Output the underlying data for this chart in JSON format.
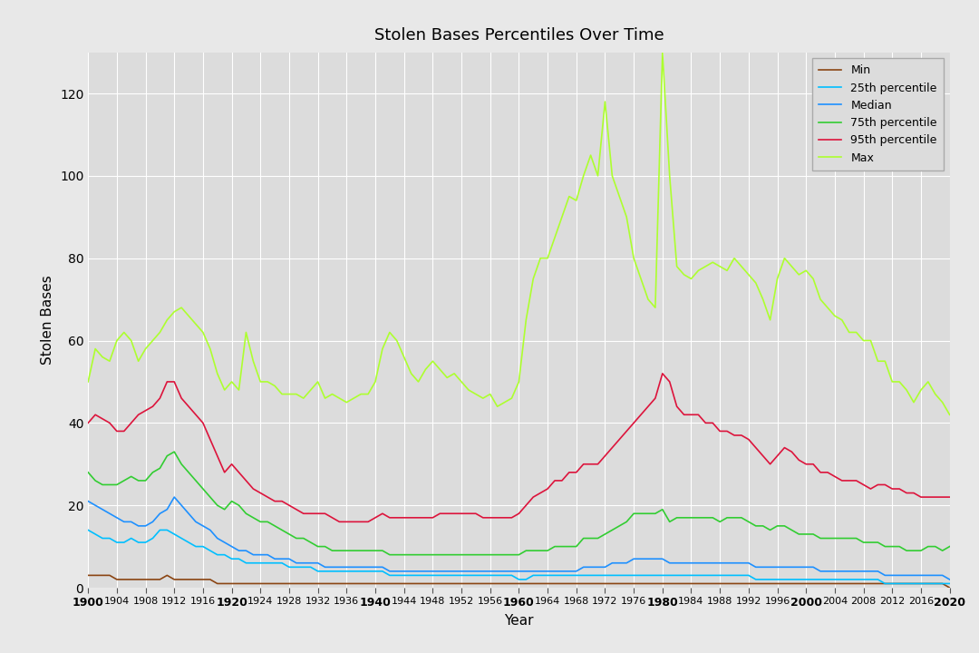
{
  "title": "Stolen Bases Percentiles Over Time",
  "xlabel": "Year",
  "ylabel": "Stolen Bases",
  "fig_background_color": "#e8e8e8",
  "axes_background_color": "#dcdcdc",
  "years": [
    1900,
    1901,
    1902,
    1903,
    1904,
    1905,
    1906,
    1907,
    1908,
    1909,
    1910,
    1911,
    1912,
    1913,
    1914,
    1915,
    1916,
    1917,
    1918,
    1919,
    1920,
    1921,
    1922,
    1923,
    1924,
    1925,
    1926,
    1927,
    1928,
    1929,
    1930,
    1931,
    1932,
    1933,
    1934,
    1935,
    1936,
    1937,
    1938,
    1939,
    1940,
    1941,
    1942,
    1943,
    1944,
    1945,
    1946,
    1947,
    1948,
    1949,
    1950,
    1951,
    1952,
    1953,
    1954,
    1955,
    1956,
    1957,
    1958,
    1959,
    1960,
    1961,
    1962,
    1963,
    1964,
    1965,
    1966,
    1967,
    1968,
    1969,
    1970,
    1971,
    1972,
    1973,
    1974,
    1975,
    1976,
    1977,
    1978,
    1979,
    1980,
    1981,
    1982,
    1983,
    1984,
    1985,
    1986,
    1987,
    1988,
    1989,
    1990,
    1991,
    1992,
    1993,
    1994,
    1995,
    1996,
    1997,
    1998,
    1999,
    2000,
    2001,
    2002,
    2003,
    2004,
    2005,
    2006,
    2007,
    2008,
    2009,
    2010,
    2011,
    2012,
    2013,
    2014,
    2015,
    2016,
    2017,
    2018,
    2019,
    2020
  ],
  "min": [
    3,
    3,
    3,
    3,
    2,
    2,
    2,
    2,
    2,
    2,
    2,
    3,
    2,
    2,
    2,
    2,
    2,
    2,
    1,
    1,
    1,
    1,
    1,
    1,
    1,
    1,
    1,
    1,
    1,
    1,
    1,
    1,
    1,
    1,
    1,
    1,
    1,
    1,
    1,
    1,
    1,
    1,
    1,
    1,
    1,
    1,
    1,
    1,
    1,
    1,
    1,
    1,
    1,
    1,
    1,
    1,
    1,
    1,
    1,
    1,
    1,
    1,
    1,
    1,
    1,
    1,
    1,
    1,
    1,
    1,
    1,
    1,
    1,
    1,
    1,
    1,
    1,
    1,
    1,
    1,
    1,
    1,
    1,
    1,
    1,
    1,
    1,
    1,
    1,
    1,
    1,
    1,
    1,
    1,
    1,
    1,
    1,
    1,
    1,
    1,
    1,
    1,
    1,
    1,
    1,
    1,
    1,
    1,
    1,
    1,
    1,
    1,
    1,
    1,
    1,
    1,
    1,
    1,
    1,
    1,
    0
  ],
  "p25": [
    14,
    13,
    12,
    12,
    11,
    11,
    12,
    11,
    11,
    12,
    14,
    14,
    13,
    12,
    11,
    10,
    10,
    9,
    8,
    8,
    7,
    7,
    6,
    6,
    6,
    6,
    6,
    6,
    5,
    5,
    5,
    5,
    4,
    4,
    4,
    4,
    4,
    4,
    4,
    4,
    4,
    4,
    3,
    3,
    3,
    3,
    3,
    3,
    3,
    3,
    3,
    3,
    3,
    3,
    3,
    3,
    3,
    3,
    3,
    3,
    2,
    2,
    3,
    3,
    3,
    3,
    3,
    3,
    3,
    3,
    3,
    3,
    3,
    3,
    3,
    3,
    3,
    3,
    3,
    3,
    3,
    3,
    3,
    3,
    3,
    3,
    3,
    3,
    3,
    3,
    3,
    3,
    3,
    2,
    2,
    2,
    2,
    2,
    2,
    2,
    2,
    2,
    2,
    2,
    2,
    2,
    2,
    2,
    2,
    2,
    2,
    1,
    1,
    1,
    1,
    1,
    1,
    1,
    1,
    1,
    1
  ],
  "median": [
    21,
    20,
    19,
    18,
    17,
    16,
    16,
    15,
    15,
    16,
    18,
    19,
    22,
    20,
    18,
    16,
    15,
    14,
    12,
    11,
    10,
    9,
    9,
    8,
    8,
    8,
    7,
    7,
    7,
    6,
    6,
    6,
    6,
    5,
    5,
    5,
    5,
    5,
    5,
    5,
    5,
    5,
    4,
    4,
    4,
    4,
    4,
    4,
    4,
    4,
    4,
    4,
    4,
    4,
    4,
    4,
    4,
    4,
    4,
    4,
    4,
    4,
    4,
    4,
    4,
    4,
    4,
    4,
    4,
    5,
    5,
    5,
    5,
    6,
    6,
    6,
    7,
    7,
    7,
    7,
    7,
    6,
    6,
    6,
    6,
    6,
    6,
    6,
    6,
    6,
    6,
    6,
    6,
    5,
    5,
    5,
    5,
    5,
    5,
    5,
    5,
    5,
    4,
    4,
    4,
    4,
    4,
    4,
    4,
    4,
    4,
    3,
    3,
    3,
    3,
    3,
    3,
    3,
    3,
    3,
    2
  ],
  "p75": [
    28,
    26,
    25,
    25,
    25,
    26,
    27,
    26,
    26,
    28,
    29,
    32,
    33,
    30,
    28,
    26,
    24,
    22,
    20,
    19,
    21,
    20,
    18,
    17,
    16,
    16,
    15,
    14,
    13,
    12,
    12,
    11,
    10,
    10,
    9,
    9,
    9,
    9,
    9,
    9,
    9,
    9,
    8,
    8,
    8,
    8,
    8,
    8,
    8,
    8,
    8,
    8,
    8,
    8,
    8,
    8,
    8,
    8,
    8,
    8,
    8,
    9,
    9,
    9,
    9,
    10,
    10,
    10,
    10,
    12,
    12,
    12,
    13,
    14,
    15,
    16,
    18,
    18,
    18,
    18,
    19,
    16,
    17,
    17,
    17,
    17,
    17,
    17,
    16,
    17,
    17,
    17,
    16,
    15,
    15,
    14,
    15,
    15,
    14,
    13,
    13,
    13,
    12,
    12,
    12,
    12,
    12,
    12,
    11,
    11,
    11,
    10,
    10,
    10,
    9,
    9,
    9,
    10,
    10,
    9,
    10
  ],
  "p95": [
    40,
    42,
    41,
    40,
    38,
    38,
    40,
    42,
    43,
    44,
    46,
    50,
    50,
    46,
    44,
    42,
    40,
    36,
    32,
    28,
    30,
    28,
    26,
    24,
    23,
    22,
    21,
    21,
    20,
    19,
    18,
    18,
    18,
    18,
    17,
    16,
    16,
    16,
    16,
    16,
    17,
    18,
    17,
    17,
    17,
    17,
    17,
    17,
    17,
    18,
    18,
    18,
    18,
    18,
    18,
    17,
    17,
    17,
    17,
    17,
    18,
    20,
    22,
    23,
    24,
    26,
    26,
    28,
    28,
    30,
    30,
    30,
    32,
    34,
    36,
    38,
    40,
    42,
    44,
    46,
    52,
    50,
    44,
    42,
    42,
    42,
    40,
    40,
    38,
    38,
    37,
    37,
    36,
    34,
    32,
    30,
    32,
    34,
    33,
    31,
    30,
    30,
    28,
    28,
    27,
    26,
    26,
    26,
    25,
    24,
    25,
    25,
    24,
    24,
    23,
    23,
    22,
    22,
    22,
    22,
    22
  ],
  "max": [
    50,
    58,
    56,
    55,
    60,
    62,
    60,
    55,
    58,
    60,
    62,
    65,
    67,
    68,
    66,
    64,
    62,
    58,
    52,
    48,
    50,
    48,
    62,
    55,
    50,
    50,
    49,
    47,
    47,
    47,
    46,
    48,
    50,
    46,
    47,
    46,
    45,
    46,
    47,
    47,
    50,
    58,
    62,
    60,
    56,
    52,
    50,
    53,
    55,
    53,
    51,
    52,
    50,
    48,
    47,
    46,
    47,
    44,
    45,
    46,
    50,
    65,
    75,
    80,
    80,
    85,
    90,
    95,
    94,
    100,
    105,
    100,
    118,
    100,
    95,
    90,
    80,
    75,
    70,
    68,
    130,
    100,
    78,
    76,
    75,
    77,
    78,
    79,
    78,
    77,
    80,
    78,
    76,
    74,
    70,
    65,
    75,
    80,
    78,
    76,
    77,
    75,
    70,
    68,
    66,
    65,
    62,
    62,
    60,
    60,
    55,
    55,
    50,
    50,
    48,
    45,
    48,
    50,
    47,
    45,
    42
  ],
  "series_colors": {
    "min": "#8B4513",
    "p25": "#00BFFF",
    "median": "#1E90FF",
    "p75": "#32CD32",
    "p95": "#DC143C",
    "max": "#ADFF2F"
  },
  "legend_labels": {
    "min": "Min",
    "p25": "25th percentile",
    "median": "Median",
    "p75": "75th percentile",
    "p95": "95th percentile",
    "max": "Max"
  },
  "ylim": [
    0,
    130
  ],
  "yticks": [
    0,
    20,
    40,
    60,
    80,
    100,
    120
  ],
  "xtick_years": [
    1900,
    1904,
    1908,
    1912,
    1916,
    1920,
    1924,
    1928,
    1932,
    1936,
    1940,
    1944,
    1948,
    1952,
    1956,
    1960,
    1964,
    1968,
    1972,
    1976,
    1980,
    1984,
    1988,
    1992,
    1996,
    2000,
    2004,
    2008,
    2012,
    2016,
    2020
  ],
  "bold_xtick_years": [
    1900,
    1920,
    1940,
    1960,
    1980,
    2000,
    2020
  ],
  "figsize": [
    10.8,
    7.2
  ],
  "dpi": 100
}
